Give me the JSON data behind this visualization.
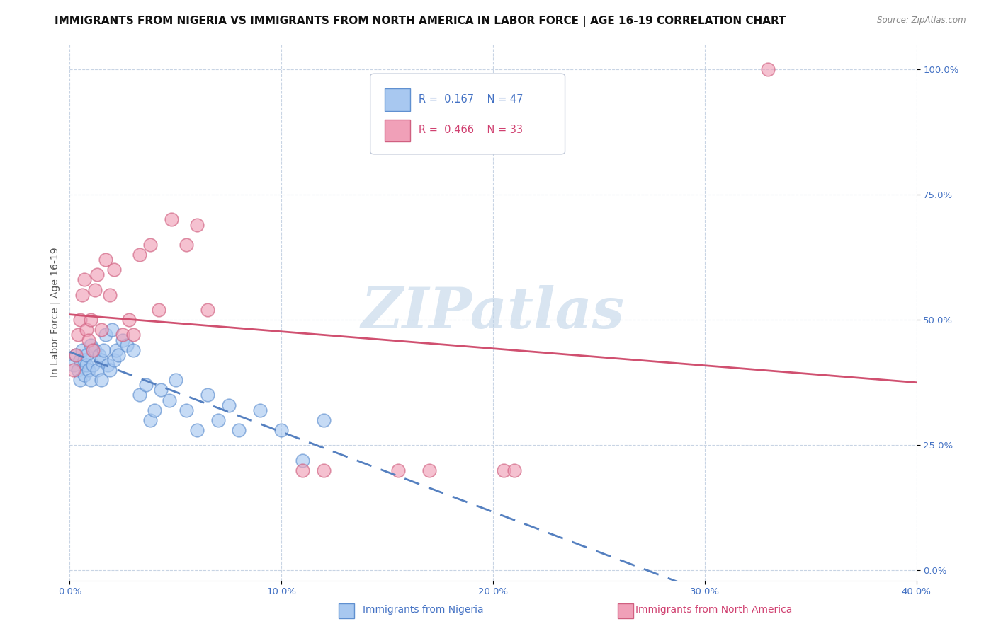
{
  "title": "IMMIGRANTS FROM NIGERIA VS IMMIGRANTS FROM NORTH AMERICA IN LABOR FORCE | AGE 16-19 CORRELATION CHART",
  "source": "Source: ZipAtlas.com",
  "xlabel_nigeria": "Immigrants from Nigeria",
  "xlabel_north_america": "Immigrants from North America",
  "ylabel": "In Labor Force | Age 16-19",
  "xlim": [
    0.0,
    0.4
  ],
  "ylim": [
    -0.02,
    1.05
  ],
  "xticks": [
    0.0,
    0.1,
    0.2,
    0.3,
    0.4
  ],
  "xtick_labels": [
    "0.0%",
    "10.0%",
    "20.0%",
    "30.0%",
    "40.0%"
  ],
  "yticks": [
    0.0,
    0.25,
    0.5,
    0.75,
    1.0
  ],
  "ytick_labels": [
    "0.0%",
    "25.0%",
    "50.0%",
    "75.0%",
    "100.0%"
  ],
  "nigeria_R": 0.167,
  "nigeria_N": 47,
  "north_america_R": 0.466,
  "north_america_N": 33,
  "nigeria_color": "#a8c8f0",
  "north_america_color": "#f0a0b8",
  "nigeria_edge_color": "#6090d0",
  "north_america_edge_color": "#d06080",
  "nigeria_line_color": "#5580c0",
  "north_america_line_color": "#d05070",
  "nigeria_scatter_x": [
    0.002,
    0.003,
    0.004,
    0.005,
    0.005,
    0.006,
    0.007,
    0.007,
    0.008,
    0.008,
    0.009,
    0.01,
    0.01,
    0.011,
    0.012,
    0.013,
    0.014,
    0.015,
    0.015,
    0.016,
    0.017,
    0.018,
    0.019,
    0.02,
    0.021,
    0.022,
    0.023,
    0.025,
    0.027,
    0.03,
    0.033,
    0.036,
    0.038,
    0.04,
    0.043,
    0.047,
    0.05,
    0.055,
    0.06,
    0.065,
    0.07,
    0.075,
    0.08,
    0.09,
    0.1,
    0.11,
    0.12
  ],
  "nigeria_scatter_y": [
    0.41,
    0.43,
    0.4,
    0.42,
    0.38,
    0.44,
    0.39,
    0.42,
    0.41,
    0.43,
    0.4,
    0.38,
    0.45,
    0.41,
    0.44,
    0.4,
    0.43,
    0.42,
    0.38,
    0.44,
    0.47,
    0.41,
    0.4,
    0.48,
    0.42,
    0.44,
    0.43,
    0.46,
    0.45,
    0.44,
    0.35,
    0.37,
    0.3,
    0.32,
    0.36,
    0.34,
    0.38,
    0.32,
    0.28,
    0.35,
    0.3,
    0.33,
    0.28,
    0.32,
    0.28,
    0.22,
    0.3
  ],
  "north_america_scatter_x": [
    0.002,
    0.003,
    0.004,
    0.005,
    0.006,
    0.007,
    0.008,
    0.009,
    0.01,
    0.011,
    0.012,
    0.013,
    0.015,
    0.017,
    0.019,
    0.021,
    0.025,
    0.028,
    0.03,
    0.033,
    0.038,
    0.042,
    0.048,
    0.055,
    0.06,
    0.065,
    0.11,
    0.12,
    0.155,
    0.17,
    0.205,
    0.21,
    0.33
  ],
  "north_america_scatter_y": [
    0.4,
    0.43,
    0.47,
    0.5,
    0.55,
    0.58,
    0.48,
    0.46,
    0.5,
    0.44,
    0.56,
    0.59,
    0.48,
    0.62,
    0.55,
    0.6,
    0.47,
    0.5,
    0.47,
    0.63,
    0.65,
    0.52,
    0.7,
    0.65,
    0.69,
    0.52,
    0.2,
    0.2,
    0.2,
    0.2,
    0.2,
    0.2,
    1.0
  ],
  "watermark_text": "ZIPatlas",
  "watermark_color": "#c0d4e8",
  "background_color": "#ffffff",
  "grid_color": "#c8d4e4",
  "title_fontsize": 11,
  "axis_label_fontsize": 10,
  "tick_fontsize": 9.5,
  "tick_color": "#4472c4"
}
